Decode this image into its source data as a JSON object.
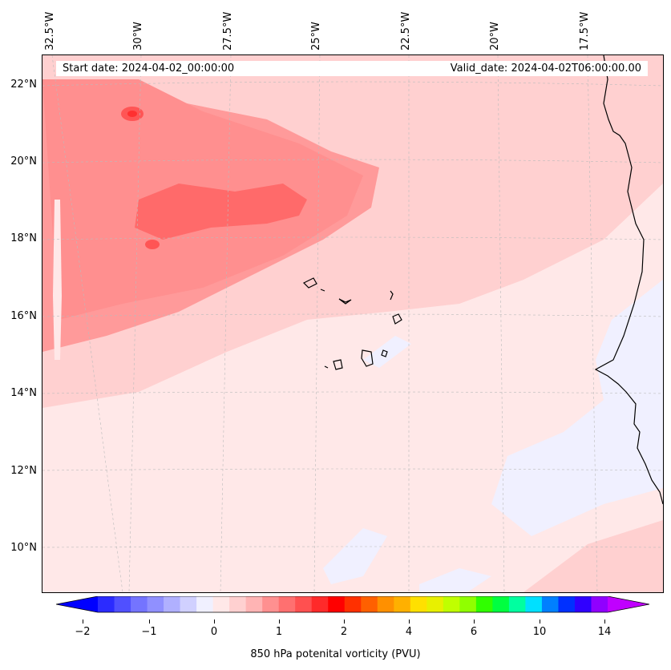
{
  "header": {
    "start_date": "Start date: 2024-04-02_00:00:00",
    "valid_date": "Valid_date: 2024-04-02T06:00:00.00"
  },
  "lon_labels": [
    "32.5°W",
    "30°W",
    "27.5°W",
    "25°W",
    "22.5°W",
    "20°W",
    "17.5°W"
  ],
  "lat_labels": [
    "22°N",
    "20°N",
    "18°N",
    "16°N",
    "14°N",
    "12°N",
    "10°N"
  ],
  "colorbar": {
    "title": "850 hPa potenital vorticity (PVU)",
    "tick_labels": [
      "−2",
      "−1",
      "0",
      "1",
      "2",
      "4",
      "6",
      "10",
      "14"
    ],
    "colors": [
      "#0000ff",
      "#2b2bff",
      "#5050ff",
      "#7474ff",
      "#9090ff",
      "#b0b0ff",
      "#d0d0ff",
      "#f0f0ff",
      "#ffe8e8",
      "#ffd0d0",
      "#ffb4b4",
      "#ff9090",
      "#ff7070",
      "#ff5050",
      "#ff2a2a",
      "#ff0000",
      "#ff3000",
      "#ff6000",
      "#ff9000",
      "#ffb000",
      "#ffe000",
      "#e8f000",
      "#c0ff00",
      "#90ff00",
      "#30ff00",
      "#00ff40",
      "#00ffa0",
      "#00e0ff",
      "#0080ff",
      "#0030ff",
      "#3000ff",
      "#9000ff",
      "#c000ff"
    ]
  },
  "map": {
    "background_color": "#ffe8e8",
    "high_pv_color": "#ff5555",
    "negative_pv_color": "#f0f0ff"
  }
}
